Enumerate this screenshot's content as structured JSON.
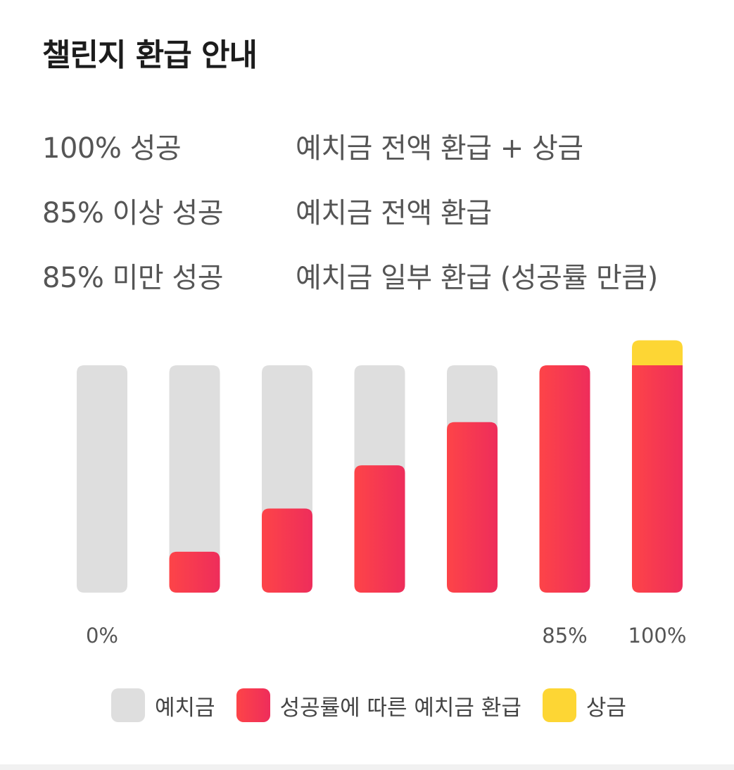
{
  "title": "챌린지 환급 안내",
  "rules": [
    {
      "condition": "100% 성공",
      "result": "예치금 전액 환급 + 상금"
    },
    {
      "condition": "85% 이상 성공",
      "result": "예치금 전액 환급"
    },
    {
      "condition": "85% 미만 성공",
      "result": "예치금 일부 환급 (성공률 만큼)"
    }
  ],
  "chart_data": {
    "type": "bar",
    "categories": [
      "0%",
      "",
      "",
      "",
      "",
      "85%",
      "100%"
    ],
    "series": [
      {
        "name": "예치금",
        "values": [
          1,
          1,
          1,
          1,
          1,
          1,
          1
        ],
        "color": "#dedede"
      },
      {
        "name": "성공률에 따른 예치금 환급",
        "values": [
          0,
          0.18,
          0.37,
          0.56,
          0.75,
          1,
          1
        ],
        "color": "#f5334f"
      },
      {
        "name": "상금",
        "values": [
          0,
          0,
          0,
          0,
          0,
          0,
          0.11
        ],
        "color": "#fdd634"
      }
    ],
    "ylim": [
      0,
      1.11
    ],
    "grid": false,
    "legend_position": "bottom"
  },
  "colors": {
    "deposit": "#dedede",
    "refund_start": "#fd4448",
    "refund_end": "#ee2d5b",
    "prize": "#fdd634",
    "label": "#555555"
  }
}
